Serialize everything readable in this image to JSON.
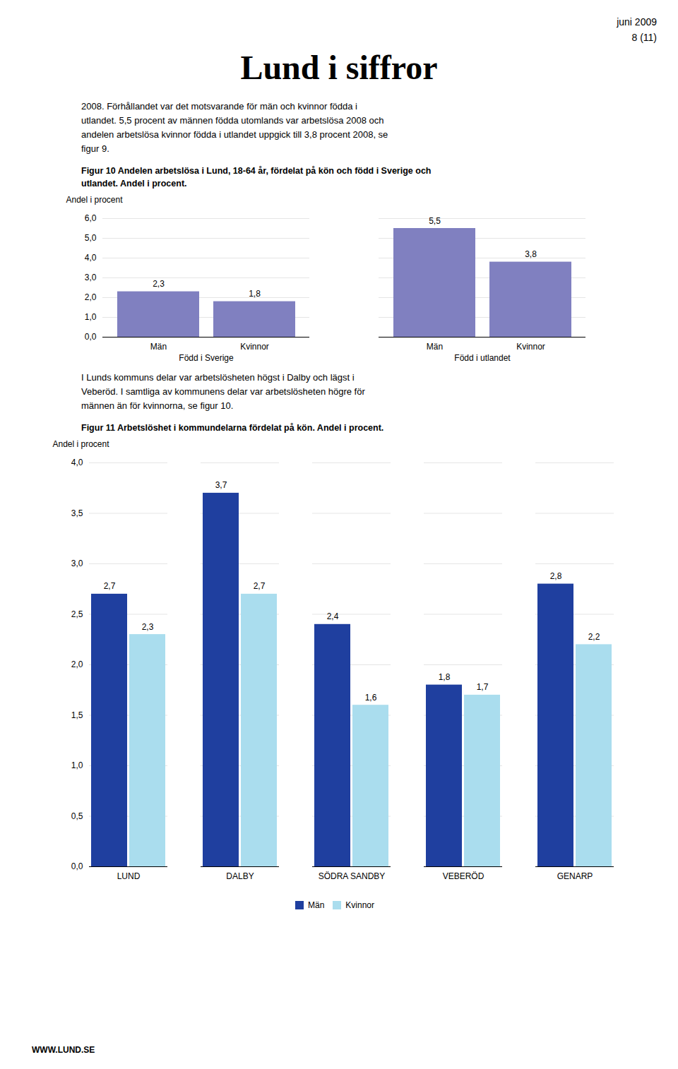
{
  "title": "Lund i siffror",
  "header": [
    "juni 2009",
    "8 (11)"
  ],
  "body_texts": [
    "2008. Förhållandet var det motsvarande för män och kvinnor födda i\nutlandet. 5,5 procent av männen födda utomlands var arbetslösa 2008 och\nandelen arbetslösa kvinnor födda i utlandet uppgick till 3,8 procent 2008, se\nfigur 9.",
    "I Lunds kommuns delar var arbetslösheten högst i Dalby och lägst i\nVeberöd. I samtliga av kommunens delar var arbetslösheten högre för\nmännen än för kvinnorna, se figur 10."
  ],
  "footer": "WWW.LUND.SE",
  "chart_data": [
    {
      "type": "bar",
      "title": "Figur 10 Andelen arbetslösa i Lund, 18-64 år, fördelat på kön och född i Sverige och\nutlandet. Andel i procent.",
      "ylabel": "Andel i procent",
      "categories": [
        "Män",
        "Kvinnor",
        "Män",
        "Kvinnor"
      ],
      "groups": [
        "Född i Sverige",
        "Född i Sverige",
        "Född i utlandet",
        "Född i utlandet"
      ],
      "values": [
        2.3,
        1.8,
        5.5,
        3.8
      ],
      "value_labels": [
        "2,3",
        "1,8",
        "5,5",
        "3,8"
      ],
      "color": "#8080C0",
      "ylim": [
        0,
        6.0
      ],
      "yticks": [
        {
          "value": 0.0,
          "label": "0,0"
        },
        {
          "value": 1.0,
          "label": "1,0"
        },
        {
          "value": 2.0,
          "label": "2,0"
        },
        {
          "value": 3.0,
          "label": "3,0"
        },
        {
          "value": 4.0,
          "label": "4,0"
        },
        {
          "value": 5.0,
          "label": "5,0"
        },
        {
          "value": 6.0,
          "label": "6,0"
        }
      ],
      "grid": true,
      "data_labels": true
    },
    {
      "type": "bar",
      "title": "Figur 11 Arbetslöshet i kommundelarna fördelat på kön. Andel i procent.",
      "ylabel": "Andel i procent",
      "categories": [
        "LUND",
        "DALBY",
        "SÖDRA SANDBY",
        "VEBERÖD",
        "GENARP"
      ],
      "series": [
        {
          "name": "Män",
          "color": "#1F3F9F",
          "values": [
            2.7,
            3.7,
            2.4,
            1.8,
            2.8
          ],
          "value_labels": [
            "2,7",
            "3,7",
            "2,4",
            "1,8",
            "2,8"
          ]
        },
        {
          "name": "Kvinnor",
          "color": "#AADDEE",
          "values": [
            2.3,
            2.7,
            1.6,
            1.7,
            2.2
          ],
          "value_labels": [
            "2,3",
            "2,7",
            "1,6",
            "1,7",
            "2,2"
          ]
        }
      ],
      "ylim": [
        0,
        4.0
      ],
      "yticks": [
        {
          "value": 0.0,
          "label": "0,0"
        },
        {
          "value": 0.5,
          "label": "0,5"
        },
        {
          "value": 1.0,
          "label": "1,0"
        },
        {
          "value": 1.5,
          "label": "1,5"
        },
        {
          "value": 2.0,
          "label": "2,0"
        },
        {
          "value": 2.5,
          "label": "2,5"
        },
        {
          "value": 3.0,
          "label": "3,0"
        },
        {
          "value": 3.5,
          "label": "3,5"
        },
        {
          "value": 4.0,
          "label": "4,0"
        }
      ],
      "grid": true,
      "legend": "bottom",
      "data_labels": true
    }
  ]
}
